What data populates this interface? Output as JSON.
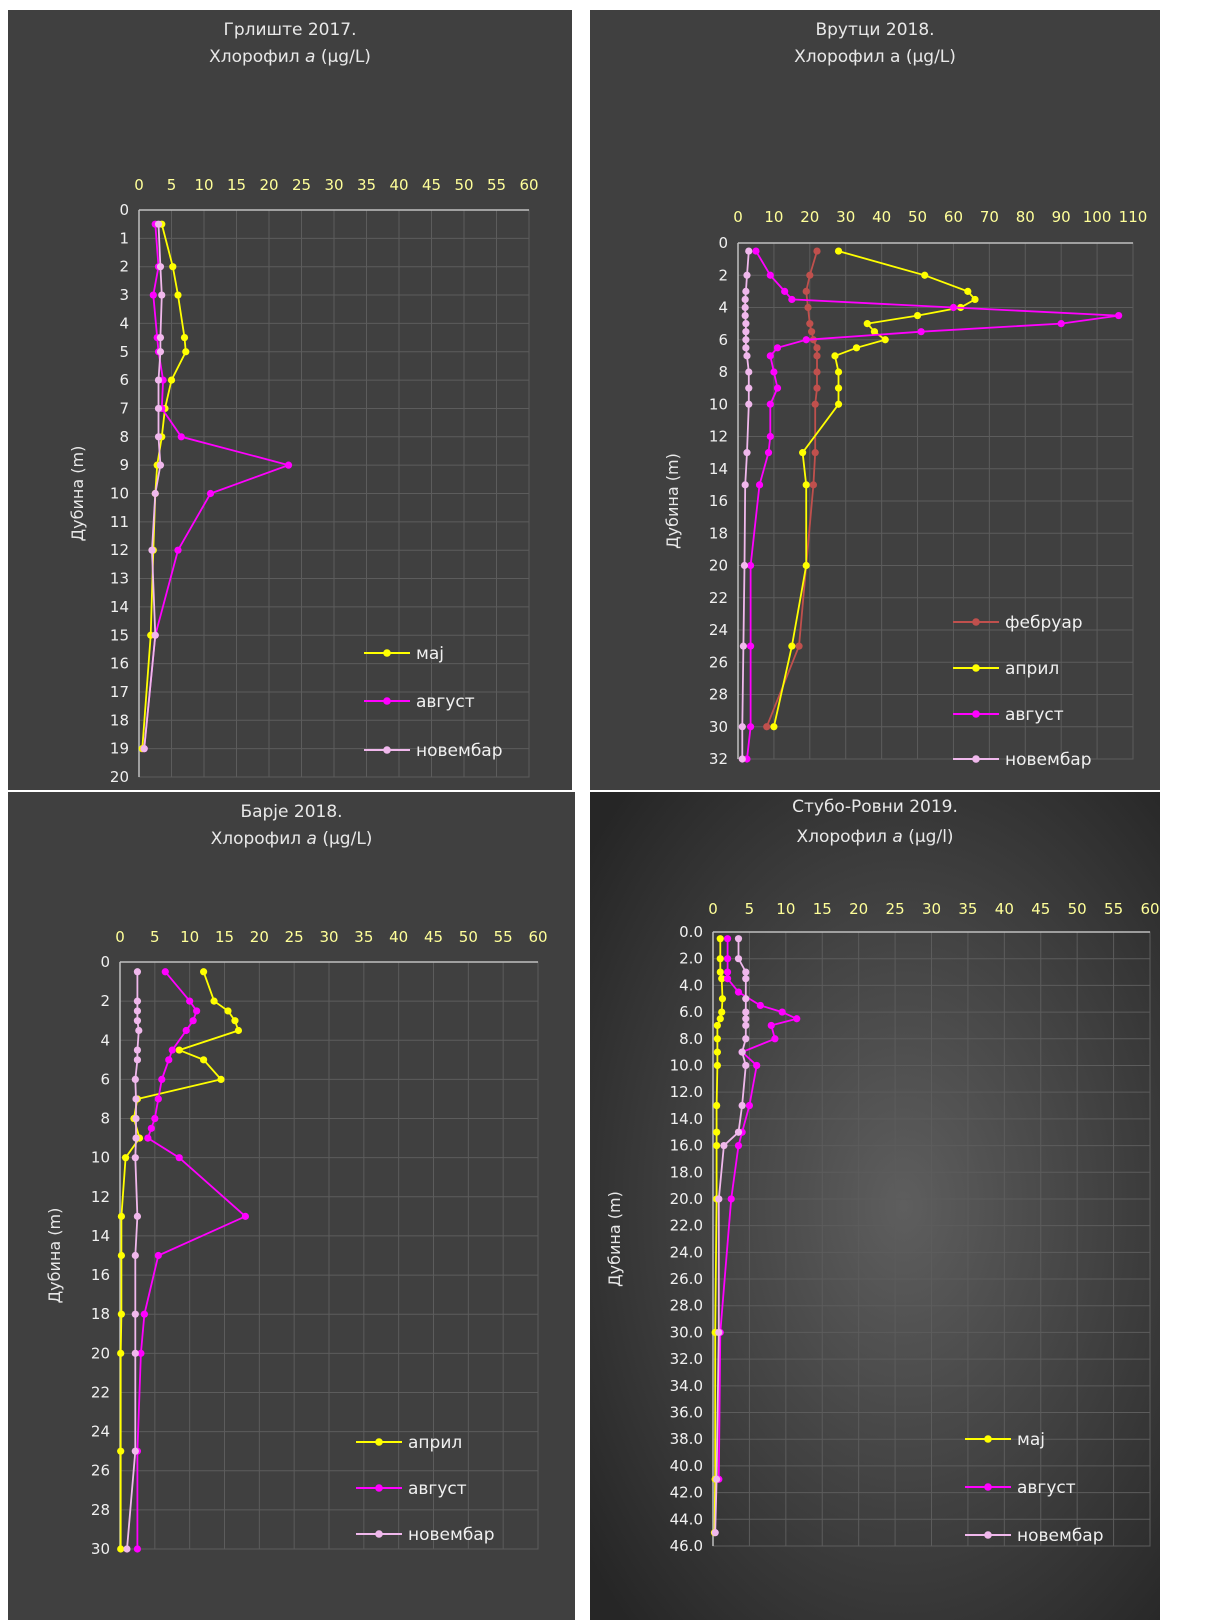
{
  "chart_data": [
    {
      "type": "line",
      "title": "Грлиште 2017.",
      "subtitle": "Хлорофил",
      "subtitle_italic": "a",
      "subtitle_unit": " (µg/L)",
      "ylabel": "Дубина (m)",
      "xlim": [
        0,
        60
      ],
      "x_ticks": [
        "0",
        "5",
        "10",
        "15",
        "20",
        "25",
        "30",
        "35",
        "40",
        "45",
        "50",
        "55",
        "60"
      ],
      "ylim": [
        0,
        20
      ],
      "y_ticks": [
        "0",
        "1",
        "2",
        "3",
        "4",
        "5",
        "6",
        "7",
        "8",
        "9",
        "10",
        "11",
        "12",
        "13",
        "14",
        "15",
        "16",
        "17",
        "18",
        "19",
        "20"
      ],
      "y_inverted": true,
      "legend_position": "bottom-right",
      "series": [
        {
          "name": "мај",
          "color": "#ffff00",
          "points": [
            [
              3.5,
              0.5
            ],
            [
              5.2,
              2
            ],
            [
              6,
              3
            ],
            [
              7,
              4.5
            ],
            [
              7.2,
              5
            ],
            [
              5,
              6
            ],
            [
              4,
              7
            ],
            [
              3.5,
              8
            ],
            [
              2.8,
              9
            ],
            [
              2.5,
              10
            ],
            [
              2.2,
              12
            ],
            [
              1.8,
              15
            ],
            [
              0.5,
              19
            ]
          ]
        },
        {
          "name": "август",
          "color": "#ff00ff",
          "points": [
            [
              2.5,
              0.5
            ],
            [
              3,
              2
            ],
            [
              2.2,
              3
            ],
            [
              2.8,
              4.5
            ],
            [
              3,
              5
            ],
            [
              3.7,
              6
            ],
            [
              3.5,
              7
            ],
            [
              6.5,
              8
            ],
            [
              23,
              9
            ],
            [
              11,
              10
            ],
            [
              6,
              12
            ],
            [
              2.5,
              15
            ],
            [
              0.8,
              19
            ]
          ]
        },
        {
          "name": "новембар",
          "color": "#f0b8ec",
          "points": [
            [
              3,
              0.5
            ],
            [
              3.3,
              2
            ],
            [
              3.5,
              3
            ],
            [
              3.3,
              4.5
            ],
            [
              3.3,
              5
            ],
            [
              3,
              6
            ],
            [
              3,
              7
            ],
            [
              3,
              8
            ],
            [
              3.3,
              9
            ],
            [
              2.5,
              10
            ],
            [
              2,
              12
            ],
            [
              2.5,
              15
            ],
            [
              0.8,
              19
            ]
          ]
        }
      ]
    },
    {
      "type": "line",
      "title": "Врутци 2018.",
      "subtitle": "Хлорофил а (µg/L)",
      "subtitle_italic": "",
      "subtitle_unit": "",
      "ylabel": "Дубина (m)",
      "xlim": [
        0,
        110
      ],
      "x_ticks": [
        "0",
        "10",
        "20",
        "30",
        "40",
        "50",
        "60",
        "70",
        "80",
        "90",
        "100",
        "110"
      ],
      "ylim": [
        0,
        32
      ],
      "y_ticks": [
        "0",
        "2",
        "4",
        "6",
        "8",
        "10",
        "12",
        "14",
        "16",
        "18",
        "20",
        "22",
        "24",
        "26",
        "28",
        "30",
        "32"
      ],
      "y_inverted": true,
      "legend_position": "bottom-right",
      "series": [
        {
          "name": "фебруар",
          "color": "#c0504d",
          "points": [
            [
              22,
              0.5
            ],
            [
              20,
              2
            ],
            [
              19,
              3
            ],
            [
              19.5,
              4
            ],
            [
              20,
              5
            ],
            [
              20.5,
              5.5
            ],
            [
              21,
              6
            ],
            [
              22,
              6.5
            ],
            [
              22,
              7
            ],
            [
              22,
              8
            ],
            [
              22,
              9
            ],
            [
              21.5,
              10
            ],
            [
              21.5,
              13
            ],
            [
              21,
              15
            ],
            [
              17,
              25
            ],
            [
              8,
              30
            ]
          ]
        },
        {
          "name": "април",
          "color": "#ffff00",
          "points": [
            [
              28,
              0.5
            ],
            [
              52,
              2
            ],
            [
              64,
              3
            ],
            [
              66,
              3.5
            ],
            [
              62,
              4
            ],
            [
              50,
              4.5
            ],
            [
              36,
              5
            ],
            [
              38,
              5.5
            ],
            [
              41,
              6
            ],
            [
              33,
              6.5
            ],
            [
              27,
              7
            ],
            [
              28,
              8
            ],
            [
              28,
              9
            ],
            [
              28,
              10
            ],
            [
              18,
              13
            ],
            [
              19,
              15
            ],
            [
              19,
              20
            ],
            [
              15,
              25
            ],
            [
              10,
              30
            ]
          ]
        },
        {
          "name": "август",
          "color": "#ff00ff",
          "points": [
            [
              5,
              0.5
            ],
            [
              9,
              2
            ],
            [
              13,
              3
            ],
            [
              15,
              3.5
            ],
            [
              60,
              4
            ],
            [
              106,
              4.5
            ],
            [
              90,
              5
            ],
            [
              51,
              5.5
            ],
            [
              19,
              6
            ],
            [
              11,
              6.5
            ],
            [
              9,
              7
            ],
            [
              10,
              8
            ],
            [
              11,
              9
            ],
            [
              9,
              10
            ],
            [
              9,
              12
            ],
            [
              8.5,
              13
            ],
            [
              6,
              15
            ],
            [
              3.5,
              20
            ],
            [
              3.5,
              25
            ],
            [
              3.5,
              30
            ],
            [
              2.5,
              32
            ]
          ]
        },
        {
          "name": "новембар",
          "color": "#f0b8ec",
          "points": [
            [
              3,
              0.5
            ],
            [
              2.5,
              2
            ],
            [
              2.2,
              3
            ],
            [
              2,
              3.5
            ],
            [
              2,
              4
            ],
            [
              2,
              4.5
            ],
            [
              2.2,
              5
            ],
            [
              2.2,
              5.5
            ],
            [
              2.2,
              6
            ],
            [
              2.2,
              6.5
            ],
            [
              2.5,
              7
            ],
            [
              3,
              8
            ],
            [
              3,
              9
            ],
            [
              3,
              10
            ],
            [
              2.5,
              13
            ],
            [
              2,
              15
            ],
            [
              1.8,
              20
            ],
            [
              1.5,
              25
            ],
            [
              1.2,
              30
            ],
            [
              1.2,
              32
            ]
          ]
        }
      ]
    },
    {
      "type": "line",
      "title": "Барје 2018.",
      "subtitle": "Хлорофил",
      "subtitle_italic": "a",
      "subtitle_unit": " (µg/L)",
      "ylabel": "Дубина (m)",
      "xlim": [
        0,
        60
      ],
      "x_ticks": [
        "0",
        "5",
        "10",
        "15",
        "20",
        "25",
        "30",
        "35",
        "40",
        "45",
        "50",
        "55",
        "60"
      ],
      "ylim": [
        0,
        30
      ],
      "y_ticks": [
        "0",
        "2",
        "4",
        "6",
        "8",
        "10",
        "12",
        "14",
        "16",
        "18",
        "20",
        "22",
        "24",
        "26",
        "28",
        "30"
      ],
      "y_inverted": true,
      "legend_position": "bottom-right",
      "series": [
        {
          "name": "април",
          "color": "#ffff00",
          "points": [
            [
              12,
              0.5
            ],
            [
              13.5,
              2
            ],
            [
              15.5,
              2.5
            ],
            [
              16.5,
              3
            ],
            [
              17,
              3.5
            ],
            [
              8.5,
              4.5
            ],
            [
              12,
              5
            ],
            [
              14.5,
              6
            ],
            [
              2.5,
              7
            ],
            [
              2,
              8
            ],
            [
              2.8,
              9
            ],
            [
              0.8,
              10
            ],
            [
              0.2,
              13
            ],
            [
              0.2,
              15
            ],
            [
              0.2,
              18
            ],
            [
              0.1,
              20
            ],
            [
              0.1,
              25
            ],
            [
              0.1,
              30
            ]
          ]
        },
        {
          "name": "август",
          "color": "#ff00ff",
          "points": [
            [
              6.5,
              0.5
            ],
            [
              10,
              2
            ],
            [
              11,
              2.5
            ],
            [
              10.5,
              3
            ],
            [
              9.5,
              3.5
            ],
            [
              7.5,
              4.5
            ],
            [
              7,
              5
            ],
            [
              6,
              6
            ],
            [
              5.5,
              7
            ],
            [
              5,
              8
            ],
            [
              4.5,
              8.5
            ],
            [
              4,
              9
            ],
            [
              8.5,
              10
            ],
            [
              18,
              13
            ],
            [
              5.5,
              15
            ],
            [
              3.5,
              18
            ],
            [
              3,
              20
            ],
            [
              2.5,
              25
            ],
            [
              2.5,
              30
            ]
          ]
        },
        {
          "name": "новембар",
          "color": "#f0b8ec",
          "points": [
            [
              2.5,
              0.5
            ],
            [
              2.5,
              2
            ],
            [
              2.5,
              2.5
            ],
            [
              2.5,
              3
            ],
            [
              2.7,
              3.5
            ],
            [
              2.5,
              4.5
            ],
            [
              2.5,
              5
            ],
            [
              2.2,
              6
            ],
            [
              2.3,
              7
            ],
            [
              2.3,
              8
            ],
            [
              2.3,
              9
            ],
            [
              2.2,
              10
            ],
            [
              2.5,
              13
            ],
            [
              2.2,
              15
            ],
            [
              2.2,
              18
            ],
            [
              2.2,
              20
            ],
            [
              2.2,
              25
            ],
            [
              1,
              30
            ]
          ]
        }
      ]
    },
    {
      "type": "line",
      "title": "Стубо-Ровни 2019.",
      "subtitle": "Хлорофил",
      "subtitle_italic": "a",
      "subtitle_unit": " (µg/l)",
      "ylabel": "Дубина (m)",
      "xlim": [
        0,
        60
      ],
      "x_ticks": [
        "0",
        "5",
        "10",
        "15",
        "20",
        "25",
        "30",
        "35",
        "40",
        "45",
        "50",
        "55",
        "60"
      ],
      "ylim": [
        0,
        46
      ],
      "y_ticks": [
        "0.0",
        "2.0",
        "4.0",
        "6.0",
        "8.0",
        "10.0",
        "12.0",
        "14.0",
        "16.0",
        "18.0",
        "20.0",
        "22.0",
        "24.0",
        "26.0",
        "28.0",
        "30.0",
        "32.0",
        "34.0",
        "36.0",
        "38.0",
        "40.0",
        "42.0",
        "44.0",
        "46.0"
      ],
      "y_inverted": true,
      "legend_position": "bottom-right",
      "series": [
        {
          "name": "мај",
          "color": "#ffff00",
          "points": [
            [
              1,
              0.5
            ],
            [
              1,
              2
            ],
            [
              1,
              3
            ],
            [
              1.2,
              3.5
            ],
            [
              1.3,
              5
            ],
            [
              1.2,
              6
            ],
            [
              1,
              6.5
            ],
            [
              0.6,
              7
            ],
            [
              0.6,
              8
            ],
            [
              0.6,
              9
            ],
            [
              0.6,
              10
            ],
            [
              0.5,
              13
            ],
            [
              0.5,
              15
            ],
            [
              0.5,
              16
            ],
            [
              0.5,
              20
            ],
            [
              0.3,
              30
            ],
            [
              0.3,
              41
            ],
            [
              0.2,
              45
            ]
          ]
        },
        {
          "name": "август",
          "color": "#ff00ff",
          "points": [
            [
              2,
              0.5
            ],
            [
              2,
              2
            ],
            [
              2,
              3
            ],
            [
              2,
              3.5
            ],
            [
              3.5,
              4.5
            ],
            [
              6.5,
              5.5
            ],
            [
              9.5,
              6
            ],
            [
              11.5,
              6.5
            ],
            [
              8,
              7
            ],
            [
              8.5,
              8
            ],
            [
              4,
              9
            ],
            [
              6,
              10
            ],
            [
              5,
              13
            ],
            [
              4,
              15
            ],
            [
              3.5,
              16
            ],
            [
              2.5,
              20
            ],
            [
              1,
              30
            ],
            [
              0.8,
              41
            ]
          ]
        },
        {
          "name": "новембар",
          "color": "#f0b8ec",
          "points": [
            [
              3.5,
              0.5
            ],
            [
              3.5,
              2
            ],
            [
              4.5,
              3
            ],
            [
              4.5,
              3.5
            ],
            [
              4.5,
              5
            ],
            [
              4.5,
              6
            ],
            [
              4.5,
              6.5
            ],
            [
              4.5,
              7
            ],
            [
              4.5,
              8
            ],
            [
              4,
              9
            ],
            [
              4.5,
              10
            ],
            [
              4,
              13
            ],
            [
              3.5,
              15
            ],
            [
              1.5,
              16
            ],
            [
              0.8,
              20
            ],
            [
              0.8,
              30
            ],
            [
              0.5,
              41
            ],
            [
              0.3,
              45
            ]
          ]
        }
      ]
    }
  ]
}
